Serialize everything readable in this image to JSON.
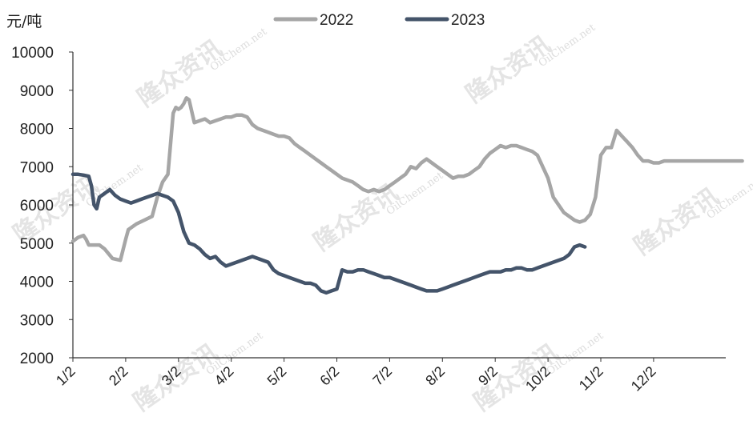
{
  "chart_data": {
    "type": "line",
    "unit_label": "元/吨",
    "ylim": [
      2000,
      10000
    ],
    "y_ticks": [
      "10000",
      "9000",
      "8000",
      "7000",
      "6000",
      "5000",
      "4000",
      "3000",
      "2000"
    ],
    "x_ticks": [
      "1/2",
      "2/2",
      "3/2",
      "4/2",
      "5/2",
      "6/2",
      "7/2",
      "8/2",
      "9/2",
      "10/2",
      "11/2",
      "12/2"
    ],
    "legend_position": "top",
    "grid": false,
    "series": [
      {
        "name": "2022",
        "color": "#a6a6a6",
        "x": [
          0.0,
          0.1,
          0.2,
          0.25,
          0.3,
          0.4,
          0.5,
          0.6,
          0.75,
          0.9,
          1.0,
          1.05,
          1.1,
          1.2,
          1.35,
          1.5,
          1.6,
          1.7,
          1.75,
          1.8,
          1.9,
          1.95,
          2.0,
          2.05,
          2.1,
          2.15,
          2.2,
          2.3,
          2.4,
          2.5,
          2.6,
          2.7,
          2.8,
          2.9,
          3.0,
          3.1,
          3.2,
          3.3,
          3.4,
          3.5,
          3.6,
          3.7,
          3.8,
          3.9,
          4.0,
          4.1,
          4.2,
          4.3,
          4.4,
          4.5,
          4.6,
          4.7,
          4.8,
          4.9,
          5.0,
          5.1,
          5.2,
          5.3,
          5.4,
          5.5,
          5.6,
          5.7,
          5.8,
          5.9,
          6.0,
          6.1,
          6.2,
          6.3,
          6.4,
          6.5,
          6.6,
          6.7,
          6.8,
          6.9,
          7.0,
          7.1,
          7.2,
          7.3,
          7.4,
          7.5,
          7.6,
          7.7,
          7.8,
          7.9,
          8.0,
          8.1,
          8.2,
          8.3,
          8.4,
          8.5,
          8.6,
          8.7,
          8.8,
          8.9,
          9.0,
          9.1,
          9.2,
          9.3,
          9.4,
          9.5,
          9.6,
          9.7,
          9.8,
          9.9,
          10.0,
          10.1,
          10.2,
          10.3,
          10.4,
          10.5,
          10.6,
          10.7,
          10.8,
          10.9,
          11.0,
          11.1,
          11.2,
          11.3,
          11.4,
          11.5,
          11.6,
          11.7,
          11.8,
          11.9,
          12.0,
          12.1,
          12.2,
          12.3,
          12.4,
          12.5,
          12.6,
          12.68
        ],
        "values": [
          5050,
          5150,
          5200,
          5100,
          4950,
          4950,
          4950,
          4850,
          4600,
          4550,
          5100,
          5350,
          5400,
          5500,
          5600,
          5700,
          6200,
          6600,
          6700,
          6800,
          8400,
          8550,
          8500,
          8550,
          8650,
          8800,
          8750,
          8150,
          8200,
          8250,
          8150,
          8200,
          8250,
          8300,
          8300,
          8350,
          8350,
          8300,
          8100,
          8000,
          7950,
          7900,
          7850,
          7800,
          7800,
          7750,
          7600,
          7500,
          7400,
          7300,
          7200,
          7100,
          7000,
          6900,
          6800,
          6700,
          6650,
          6600,
          6500,
          6400,
          6350,
          6400,
          6350,
          6400,
          6500,
          6600,
          6700,
          6800,
          7000,
          6950,
          7100,
          7200,
          7100,
          7000,
          6900,
          6800,
          6700,
          6750,
          6750,
          6800,
          6900,
          7000,
          7200,
          7350,
          7450,
          7550,
          7500,
          7550,
          7550,
          7500,
          7450,
          7400,
          7300,
          7000,
          6700,
          6200,
          6000,
          5800,
          5700,
          5600,
          5550,
          5600,
          5750,
          6200,
          7300,
          7500,
          7500,
          7950,
          7800,
          7650,
          7500,
          7300,
          7150,
          7150,
          7100,
          7100,
          7150,
          7150,
          7150,
          7150,
          7150,
          7150,
          7150,
          7150,
          7150,
          7150,
          7150,
          7150,
          7150,
          7150,
          7150,
          7150
        ]
      },
      {
        "name": "2023",
        "color": "#44546a",
        "x": [
          0.0,
          0.1,
          0.2,
          0.3,
          0.35,
          0.4,
          0.45,
          0.5,
          0.55,
          0.6,
          0.7,
          0.8,
          0.9,
          1.0,
          1.1,
          1.2,
          1.3,
          1.4,
          1.5,
          1.6,
          1.7,
          1.8,
          1.9,
          2.0,
          2.1,
          2.2,
          2.3,
          2.4,
          2.5,
          2.6,
          2.7,
          2.8,
          2.9,
          3.0,
          3.1,
          3.2,
          3.3,
          3.4,
          3.5,
          3.6,
          3.7,
          3.8,
          3.9,
          4.0,
          4.1,
          4.2,
          4.3,
          4.4,
          4.5,
          4.6,
          4.7,
          4.8,
          4.9,
          5.0,
          5.1,
          5.2,
          5.3,
          5.4,
          5.5,
          5.6,
          5.7,
          5.8,
          5.9,
          6.0,
          6.1,
          6.2,
          6.3,
          6.4,
          6.5,
          6.6,
          6.7,
          6.8,
          6.9,
          7.0,
          7.1,
          7.2,
          7.3,
          7.4,
          7.5,
          7.6,
          7.7,
          7.8,
          7.9,
          8.0,
          8.1,
          8.2,
          8.3,
          8.4,
          8.5,
          8.6,
          8.7,
          8.8,
          8.9,
          9.0,
          9.1,
          9.2,
          9.3,
          9.4,
          9.5,
          9.6,
          9.7
        ],
        "values": [
          6800,
          6800,
          6780,
          6750,
          6500,
          6000,
          5900,
          6200,
          6250,
          6300,
          6400,
          6250,
          6150,
          6100,
          6050,
          6100,
          6150,
          6200,
          6250,
          6300,
          6250,
          6200,
          6100,
          5800,
          5300,
          5000,
          4950,
          4850,
          4700,
          4600,
          4650,
          4500,
          4400,
          4450,
          4500,
          4550,
          4600,
          4650,
          4600,
          4550,
          4500,
          4300,
          4200,
          4150,
          4100,
          4050,
          4000,
          3950,
          3950,
          3900,
          3750,
          3700,
          3750,
          3800,
          4300,
          4250,
          4250,
          4300,
          4300,
          4250,
          4200,
          4150,
          4100,
          4100,
          4050,
          4000,
          3950,
          3900,
          3850,
          3800,
          3750,
          3750,
          3750,
          3800,
          3850,
          3900,
          3950,
          4000,
          4050,
          4100,
          4150,
          4200,
          4250,
          4250,
          4250,
          4300,
          4300,
          4350,
          4350,
          4300,
          4300,
          4350,
          4400,
          4450,
          4500,
          4550,
          4600,
          4700,
          4900,
          4950,
          4900
        ]
      }
    ]
  },
  "watermark": {
    "cn": "隆众资讯",
    "en": "OilChem.net"
  }
}
